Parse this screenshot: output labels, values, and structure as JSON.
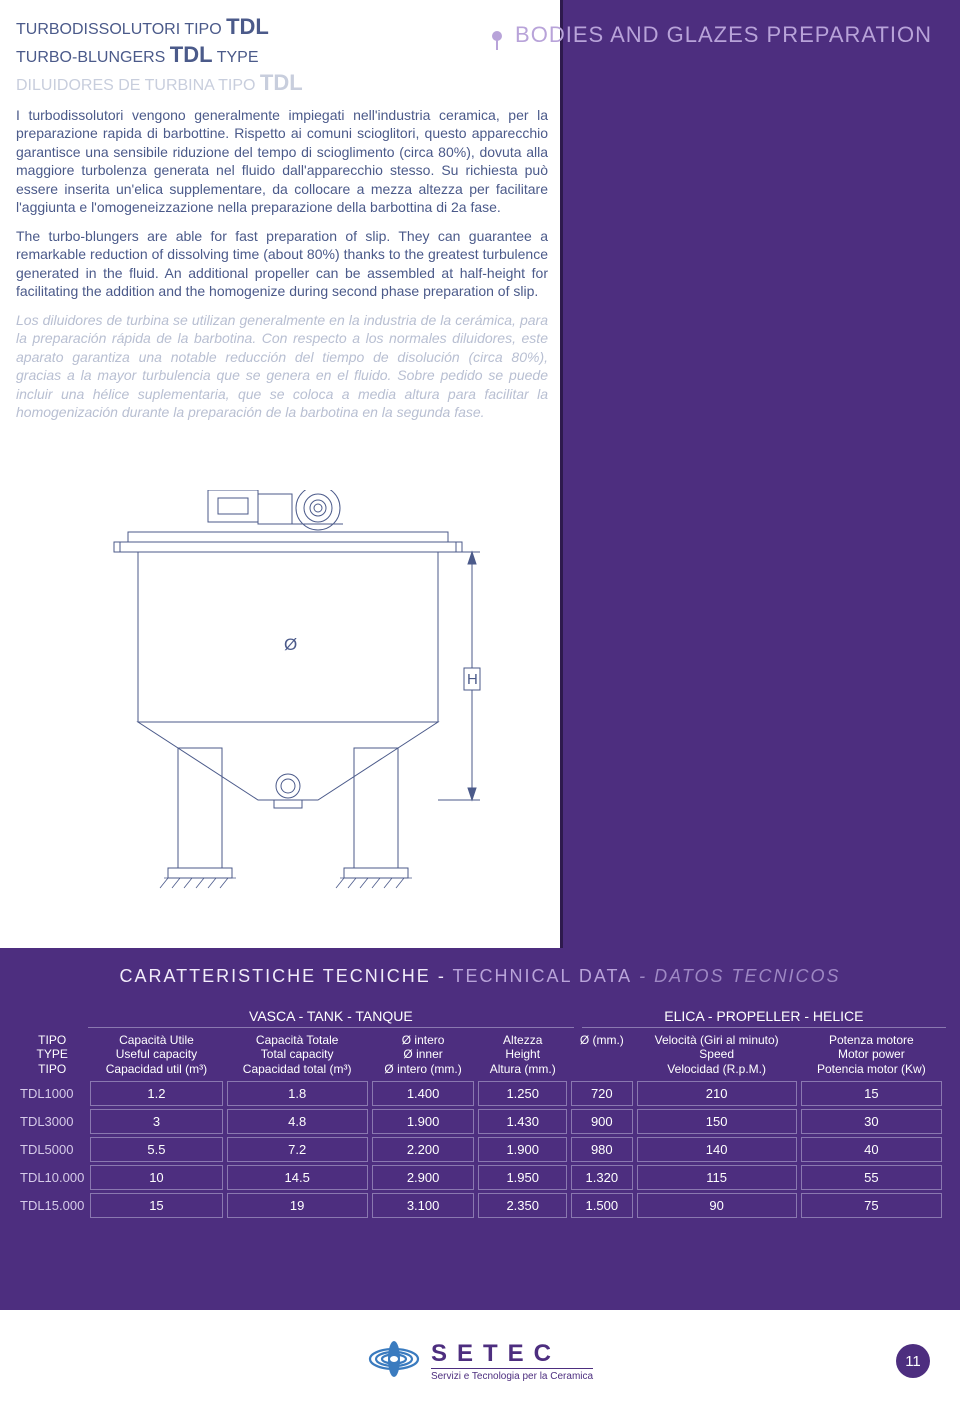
{
  "colors": {
    "primary": "#4d2e7f",
    "primary_dark": "#2e1a4d",
    "text_blue": "#4b5a8a",
    "text_muted": "#b8bfd2",
    "header_accent": "#b8a3d9",
    "cell_border": "#8a78b0"
  },
  "section_badge": "BODIES AND GLAZES PREPARATION",
  "titles": {
    "it_pre": "TURBODISSOLUTORI TIPO ",
    "it_big": "TDL",
    "en_pre": "TURBO-BLUNGERS ",
    "en_big": "TDL",
    "en_post": " TYPE",
    "es_pre": "DILUIDORES DE TURBINA TIPO ",
    "es_big": "TDL"
  },
  "paragraphs": {
    "it": "I turbodissolutori vengono generalmente impiegati nell'industria ceramica, per la preparazione rapida di barbottine. Rispetto ai comuni scioglitori, questo apparecchio garantisce una sensibile riduzione del tempo di scioglimento (circa 80%), dovuta alla maggiore turbolenza generata nel fluido dall'apparecchio stesso. Su richiesta può essere inserita un'elica supplementare, da collocare a mezza altezza per facilitare l'aggiunta e l'omogeneizzazione nella preparazione della barbottina di 2a fase.",
    "en": "The turbo-blungers are able for fast preparation of slip. They can guarantee a remarkable reduction of dissolving time (about 80%) thanks to the greatest turbulence generated in the fluid. An additional propeller can be assembled at half-height for facilitating the addition and the homogenize during second phase preparation of slip.",
    "es": "Los diluidores de turbina se utilizan generalmente en la industria de la cerámica, para la preparación rápida de la barbotina. Con respecto a los normales diluidores, este aparato garantiza una notable reducción del tiempo de disolución (circa 80%), gracias a la mayor turbulencia que se genera en el fluido. Sobre pedido se puede incluir una hélice suplementaria, que se coloca a media altura para facilitar la homogenización durante la preparación de la barbotina en la segunda fase."
  },
  "diagram": {
    "label_diameter": "Ø",
    "label_height": "H",
    "stroke": "#4b5a8a",
    "stroke_width": 1
  },
  "tech_heading": {
    "it": "CARATTERISTICHE TECNICHE",
    "sep1": " - ",
    "en": "TECHNICAL DATA",
    "sep2": " - ",
    "es": "DATOS TECNICOS"
  },
  "groups": {
    "tank": "VASCA  -  TANK  -  TANQUE",
    "propeller": "ELICA  -  PROPELLER  -  HELICE"
  },
  "headers": {
    "type": {
      "it": "TIPO",
      "en": "TYPE",
      "es": "TIPO"
    },
    "useful": {
      "it": "Capacità Utile",
      "en": "Useful capacity",
      "es": "Capacidad util (m³)"
    },
    "total": {
      "it": "Capacità Totale",
      "en": "Total capacity",
      "es": "Capacidad total (m³)"
    },
    "diameter": {
      "it": "Ø intero",
      "en": "Ø inner",
      "es": "Ø intero (mm.)"
    },
    "height": {
      "it": "Altezza",
      "en": "Height",
      "es": "Altura (mm.)"
    },
    "prop_d": {
      "it": "Ø (mm.)",
      "en": "",
      "es": ""
    },
    "speed": {
      "it": "Velocità (Giri al minuto)",
      "en": "Speed",
      "es": "Velocidad (R.p.M.)"
    },
    "power": {
      "it": "Potenza motore",
      "en": "Motor power",
      "es": "Potencia motor (Kw)"
    }
  },
  "rows": [
    {
      "model": "TDL1000",
      "useful": "1.2",
      "total": "1.8",
      "dia": "1.400",
      "h": "1.250",
      "pd": "720",
      "speed": "210",
      "pow": "15"
    },
    {
      "model": "TDL3000",
      "useful": "3",
      "total": "4.8",
      "dia": "1.900",
      "h": "1.430",
      "pd": "900",
      "speed": "150",
      "pow": "30"
    },
    {
      "model": "TDL5000",
      "useful": "5.5",
      "total": "7.2",
      "dia": "2.200",
      "h": "1.900",
      "pd": "980",
      "speed": "140",
      "pow": "40"
    },
    {
      "model": "TDL10.000",
      "useful": "10",
      "total": "14.5",
      "dia": "2.900",
      "h": "1.950",
      "pd": "1.320",
      "speed": "115",
      "pow": "55"
    },
    {
      "model": "TDL15.000",
      "useful": "15",
      "total": "19",
      "dia": "3.100",
      "h": "2.350",
      "pd": "1.500",
      "speed": "90",
      "pow": "75"
    }
  ],
  "footer": {
    "brand": "SETEC",
    "tagline": "Servizi e Tecnologia per la Ceramica",
    "page": "11",
    "swirl_color": "#3a7bbf"
  }
}
